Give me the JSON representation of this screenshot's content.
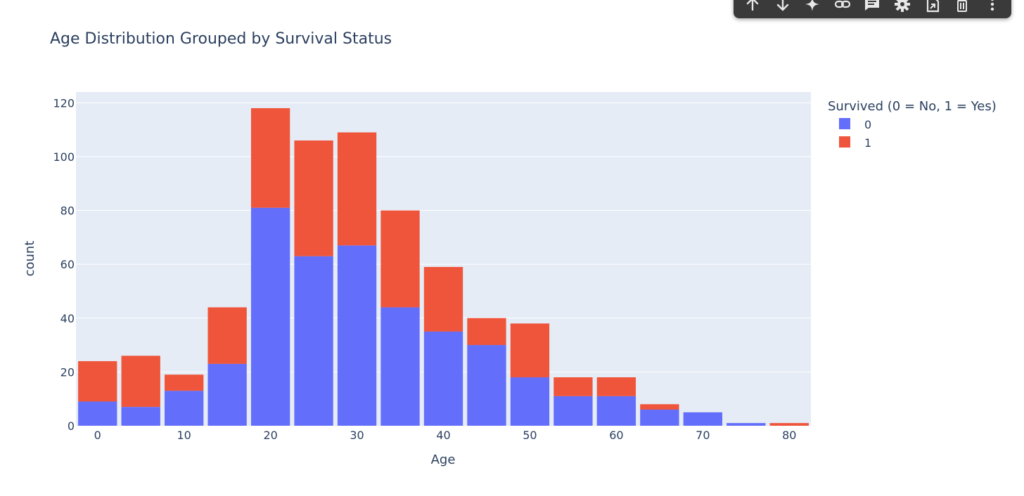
{
  "colors": {
    "series_0": "#636efa",
    "series_1": "#ef553b",
    "plot_bg": "#e5ecf6",
    "text": "#2a3f5f",
    "grid": "#ffffff",
    "toolbar_bg": "#3a3a3a"
  },
  "toolbar": {
    "icons": [
      "arrow-up-icon",
      "arrow-down-icon",
      "sparkle-icon",
      "link-icon",
      "comment-icon",
      "gear-icon",
      "export-icon",
      "trash-icon",
      "more-vertical-icon"
    ]
  },
  "chart_data": {
    "type": "bar",
    "barmode": "stack",
    "title": "Age Distribution Grouped by Survival Status",
    "xlabel": "Age",
    "ylabel": "count",
    "x_bin_start": [
      0,
      5,
      10,
      15,
      20,
      25,
      30,
      35,
      40,
      45,
      50,
      55,
      60,
      65,
      70,
      75,
      80
    ],
    "x_bin_width": 5,
    "xlim": [
      -2.5,
      82.5
    ],
    "ylim": [
      0,
      124
    ],
    "x_ticks": [
      0,
      10,
      20,
      30,
      40,
      50,
      60,
      70,
      80
    ],
    "y_ticks": [
      0,
      20,
      40,
      60,
      80,
      100,
      120
    ],
    "grid": true,
    "legend": {
      "title": "Survived (0 = No, 1 = Yes)",
      "placement": "top-right, outside plot"
    },
    "series": [
      {
        "name": "0",
        "values": [
          9,
          7,
          13,
          23,
          81,
          63,
          67,
          44,
          35,
          30,
          18,
          11,
          11,
          6,
          5,
          1,
          0
        ]
      },
      {
        "name": "1",
        "values": [
          15,
          19,
          6,
          21,
          37,
          43,
          42,
          36,
          24,
          10,
          20,
          7,
          7,
          2,
          0,
          0,
          1
        ]
      }
    ]
  }
}
